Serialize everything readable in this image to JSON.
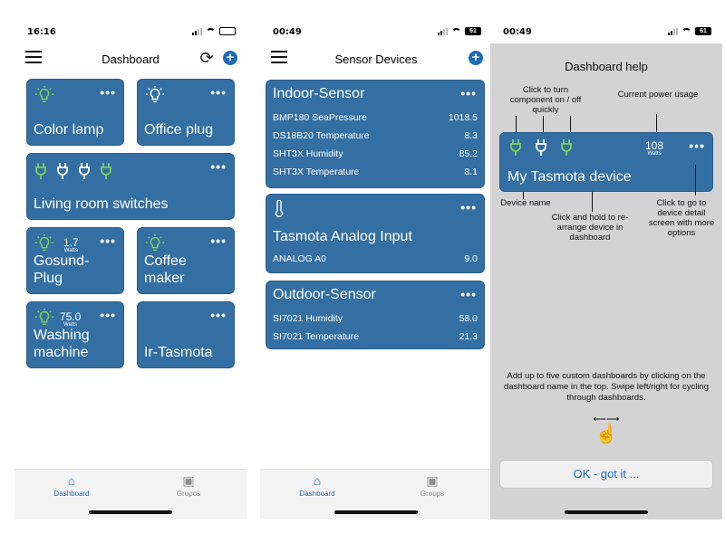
{
  "screens": [
    {
      "status": {
        "time": "16:16",
        "battery": ""
      },
      "header": {
        "title": "Dashboard"
      },
      "tiles": [
        {
          "name": "Color lamp",
          "icon": "lightbulb-icon"
        },
        {
          "name": "Office plug",
          "icon": "lightbulb-outline-icon"
        },
        {
          "name": "Living room switches",
          "icon": "plug-icon"
        },
        {
          "name": "Gosund-Plug",
          "power": "1.7",
          "unit": "Watts"
        },
        {
          "name": "Coffee maker",
          "icon": "lightbulb-icon"
        },
        {
          "name": "Washing machine",
          "power": "75.0",
          "unit": "Watts"
        },
        {
          "name": "Ir-Tasmota"
        }
      ],
      "tabs": [
        {
          "label": "Dashboard"
        },
        {
          "label": "Grupos"
        }
      ]
    },
    {
      "status": {
        "time": "00:49",
        "battery": "61"
      },
      "header": {
        "title": "Sensor Devices"
      },
      "cards": [
        {
          "title": "Indoor-Sensor",
          "rows": [
            {
              "label": "BMP180 SeaPressure",
              "value": "1018.5"
            },
            {
              "label": "DS18B20 Temperature",
              "value": "8.3"
            },
            {
              "label": "SHT3X Humidity",
              "value": "85.2"
            },
            {
              "label": "SHT3X Temperature",
              "value": "8.1"
            }
          ]
        },
        {
          "title": "Tasmota Analog Input",
          "rows": [
            {
              "label": "ANALOG A0",
              "value": "9.0"
            }
          ]
        },
        {
          "title": "Outdoor-Sensor",
          "rows": [
            {
              "label": "SI7021 Humidity",
              "value": "58.0"
            },
            {
              "label": "SI7021 Temperature",
              "value": "21.3"
            }
          ]
        }
      ],
      "tabs": [
        {
          "label": "Dashboard"
        },
        {
          "label": "Groups"
        }
      ]
    },
    {
      "status": {
        "time": "00:49",
        "battery": "61"
      },
      "title": "Dashboard help",
      "annotations": {
        "turn_on": "Click to turn component on / off quickly",
        "power": "Current power usage",
        "device_name": "Device name",
        "rearrange": "Click and hold to re-arrange device in dashboard",
        "detail": "Click to go to device detail screen with more options"
      },
      "example_device": {
        "name": "My Tasmota device",
        "power": "108",
        "unit": "Watts"
      },
      "note": "Add up to five custom dashboards by clicking on the dashboard name in the top. Swipe left/right for cycling through dashboards.",
      "ok_label": "OK - got it ..."
    }
  ],
  "colors": {
    "tile": "#336fa3",
    "accent": "#1e6bb8",
    "green": "#7bd15a"
  }
}
